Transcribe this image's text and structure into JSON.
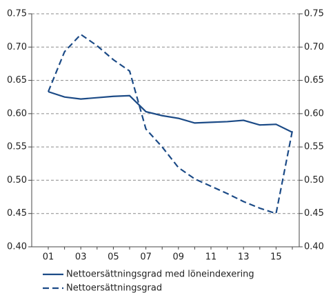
{
  "chart_data": {
    "type": "line",
    "categories": [
      "01",
      null,
      "03",
      null,
      "05",
      null,
      "07",
      null,
      "09",
      null,
      "11",
      null,
      "13",
      null,
      "15",
      null
    ],
    "series": [
      {
        "name": "Nettoersättningsgrad med löneindexering",
        "color": "#1b4a86",
        "dash": false,
        "values": [
          0.633,
          0.625,
          0.622,
          0.624,
          0.626,
          0.627,
          0.603,
          0.597,
          0.593,
          0.586,
          0.587,
          0.588,
          0.59,
          0.583,
          0.584,
          0.572
        ]
      },
      {
        "name": "Nettoersättningsgrad",
        "color": "#1b4a86",
        "dash": true,
        "values": [
          0.633,
          0.693,
          0.719,
          0.702,
          0.681,
          0.664,
          0.577,
          0.55,
          0.519,
          0.502,
          0.491,
          0.48,
          0.468,
          0.458,
          0.45,
          0.574
        ]
      }
    ],
    "ylim": [
      0.4,
      0.75
    ],
    "yticks": [
      {
        "value": 0.4,
        "label": "0.40"
      },
      0.45,
      {
        "value": 0.5,
        "label": "0.50"
      },
      0.55,
      {
        "value": 0.6,
        "label": "0.60"
      },
      0.65,
      {
        "value": 0.7,
        "label": "0.70"
      },
      0.75
    ],
    "y2lim": [
      0.4,
      0.75
    ],
    "y2ticks": [
      {
        "value": 0.4,
        "label": "0.40"
      },
      0.45,
      {
        "value": 0.5,
        "label": "0.50"
      },
      0.55,
      {
        "value": 0.6,
        "label": "0.60"
      },
      0.65,
      {
        "value": 0.7,
        "label": "0.70"
      },
      0.75
    ],
    "grid": true
  }
}
